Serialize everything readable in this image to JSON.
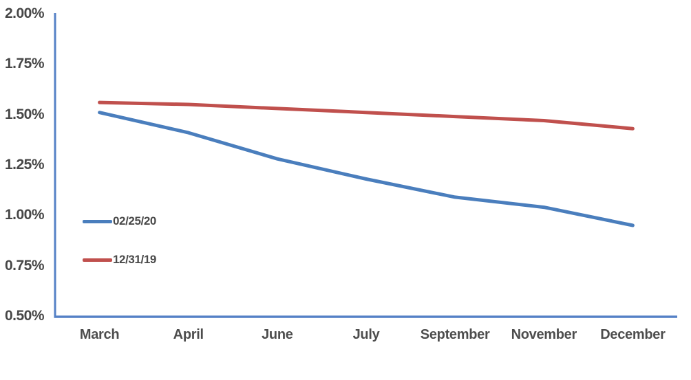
{
  "chart_data": {
    "type": "line",
    "title": "",
    "xlabel": "",
    "ylabel": "",
    "grid": false,
    "legend_position": "inside-left",
    "categories": [
      "March",
      "April",
      "June",
      "July",
      "September",
      "November",
      "December"
    ],
    "series": [
      {
        "name": "02/25/20",
        "color": "#4a7ebd",
        "values": [
          1.51,
          1.41,
          1.28,
          1.18,
          1.09,
          1.04,
          0.95
        ]
      },
      {
        "name": "12/31/19",
        "color": "#c0504d",
        "values": [
          1.56,
          1.55,
          1.53,
          1.51,
          1.49,
          1.47,
          1.43
        ]
      }
    ],
    "ylim": [
      0.5,
      2.0
    ],
    "ytick_values": [
      2.0,
      1.75,
      1.5,
      1.25,
      1.0,
      0.75,
      0.5
    ],
    "ytick_labels": [
      "2.00%",
      "1.75%",
      "1.50%",
      "1.25%",
      "1.00%",
      "0.75%",
      "0.50%"
    ],
    "axis_color": "#5581c6",
    "label_color": "#4a4a4a"
  }
}
